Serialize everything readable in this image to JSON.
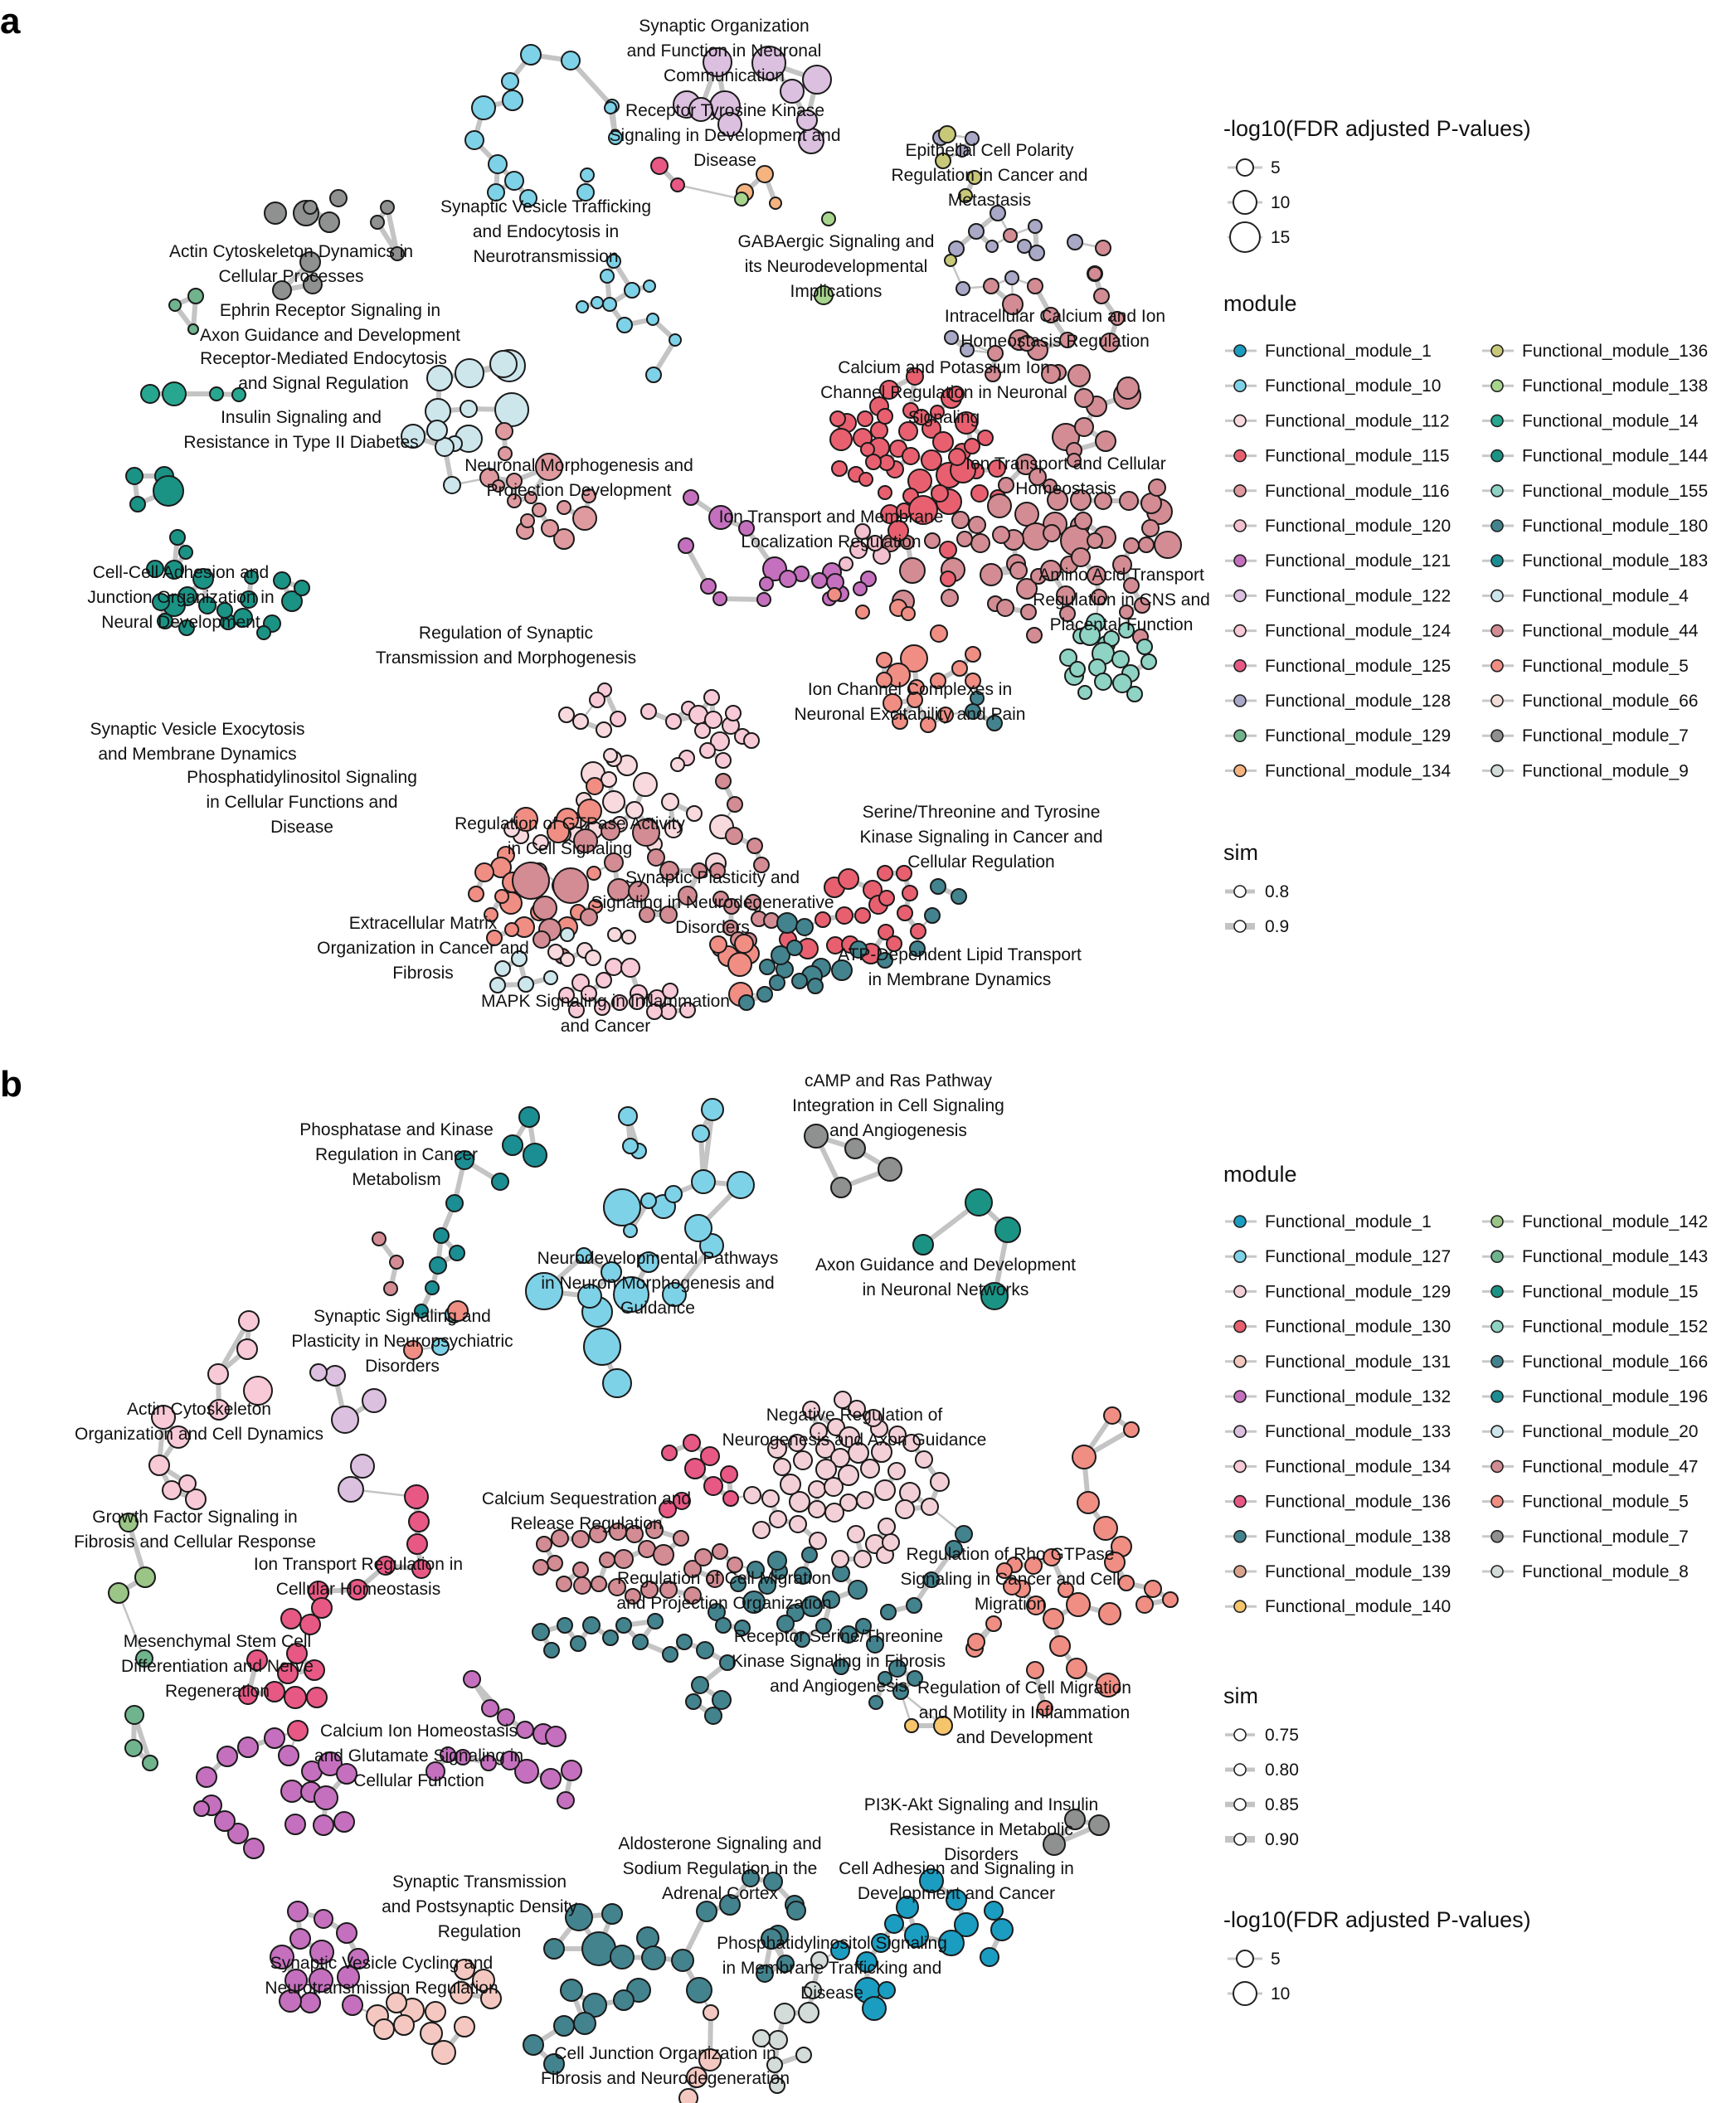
{
  "figure": {
    "panels": [
      {
        "letter": "a",
        "labels": [
          "Synaptic Organization\nand Function in Neuronal\nCommunication",
          "Receptor Tyrosine Kinase\nSignaling in Development and\nDisease",
          "Epithelial Cell Polarity\nRegulation in Cancer and\nMetastasis",
          "Synaptic Vesicle Trafficking\nand Endocytosis in\nNeurotransmission",
          "Actin Cytoskeleton Dynamics in\nCellular Processes",
          "GABAergic Signaling and\nits Neurodevelopmental\nImplications",
          "Ephrin Receptor Signaling in\nAxon Guidance and Development",
          "Intracellular Calcium and Ion\nHomeostasis Regulation",
          "Receptor-Mediated Endocytosis\nand Signal Regulation",
          "Calcium and Potassium Ion\nChannel Regulation in Neuronal\nSignaling",
          "Insulin Signaling and\nResistance in Type II Diabetes",
          "Neuronal Morphogenesis and\nProjection Development",
          "Ion Transport and Cellular\nHomeostasis",
          "Ion Transport and Membrane\nLocalization Regulation",
          "Cell-Cell Adhesion and\nJunction Organization in\nNeural Development",
          "Amino Acid Transport\nRegulation in CNS and\nPlacental Function",
          "Regulation of Synaptic\nTransmission and Morphogenesis",
          "Ion Channel Complexes in\nNeuronal Excitability and Pain",
          "Synaptic Vesicle Exocytosis\nand Membrane Dynamics",
          "Phosphatidylinositol Signaling\nin Cellular Functions and\nDisease",
          "Serine/Threonine and Tyrosine\nKinase Signaling in Cancer and\nCellular Regulation",
          "Regulation of GTPase Activity\nin Cell Signaling",
          "Synaptic Plasticity and\nSignaling in Neurodegenerative\nDisorders",
          "Extracellular Matrix\nOrganization in Cancer and\nFibrosis",
          "ATP-Dependent Lipid Transport\nin Membrane Dynamics",
          "MAPK Signaling in Inflammation\nand Cancer"
        ],
        "size_legend": {
          "title": "-log10(FDR adjusted P-values)",
          "values": [
            "5",
            "10",
            "15"
          ]
        },
        "module_legend": {
          "title": "module",
          "items": [
            {
              "name": "Functional_module_1",
              "color": "#1B9DC1"
            },
            {
              "name": "Functional_module_10",
              "color": "#7ED2E8"
            },
            {
              "name": "Functional_module_112",
              "color": "#F7D9DE"
            },
            {
              "name": "Functional_module_115",
              "color": "#E8606F"
            },
            {
              "name": "Functional_module_116",
              "color": "#DF9A9F"
            },
            {
              "name": "Functional_module_120",
              "color": "#F2C0CF"
            },
            {
              "name": "Functional_module_121",
              "color": "#C570BE"
            },
            {
              "name": "Functional_module_122",
              "color": "#DCC0E0"
            },
            {
              "name": "Functional_module_124",
              "color": "#F8C9D6"
            },
            {
              "name": "Functional_module_125",
              "color": "#E85885"
            },
            {
              "name": "Functional_module_128",
              "color": "#A9A8C6"
            },
            {
              "name": "Functional_module_129",
              "color": "#70B48E"
            },
            {
              "name": "Functional_module_134",
              "color": "#F5B37F"
            },
            {
              "name": "Functional_module_136",
              "color": "#C8C879"
            },
            {
              "name": "Functional_module_138",
              "color": "#A8D58E"
            },
            {
              "name": "Functional_module_14",
              "color": "#27A78F"
            },
            {
              "name": "Functional_module_144",
              "color": "#1A9385"
            },
            {
              "name": "Functional_module_155",
              "color": "#8ED3C4"
            },
            {
              "name": "Functional_module_180",
              "color": "#42838E"
            },
            {
              "name": "Functional_module_183",
              "color": "#1B8E93"
            },
            {
              "name": "Functional_module_4",
              "color": "#CDE6EC"
            },
            {
              "name": "Functional_module_44",
              "color": "#D38C93"
            },
            {
              "name": "Functional_module_5",
              "color": "#F08E84"
            },
            {
              "name": "Functional_module_66",
              "color": "#F3DDD8"
            },
            {
              "name": "Functional_module_7",
              "color": "#8F9090"
            },
            {
              "name": "Functional_module_9",
              "color": "#D3DCD9"
            }
          ]
        },
        "sim_legend": {
          "title": "sim",
          "values": [
            "0.8",
            "0.9"
          ]
        }
      },
      {
        "letter": "b",
        "labels": [
          "cAMP and Ras Pathway\nIntegration in Cell Signaling\nand Angiogenesis",
          "Phosphatase and Kinase\nRegulation in Cancer\nMetabolism",
          "Neurodevelopmental Pathways\nin Neuron Morphogenesis and\nGuidance",
          "Axon Guidance and Development\nin Neuronal Networks",
          "Synaptic Signaling and\nPlasticity in Neuropsychiatric\nDisorders",
          "Actin Cytoskeleton\nOrganization and Cell Dynamics",
          "Negative Regulation of\nNeurogenesis and Axon Guidance",
          "Calcium Sequestration and\nRelease Regulation",
          "Growth Factor Signaling in\nFibrosis and Cellular Response",
          "Ion Transport Regulation in\nCellular Homeostasis",
          "Regulation of Cell Migration\nand Projection Organization",
          "Regulation of Rho GTPase\nSignaling in Cancer and Cell\nMigration",
          "Receptor Serine/Threonine\nKinase Signaling in Fibrosis\nand Angiogenesis",
          "Mesenchymal Stem Cell\nDifferentiation and Nerve\nRegeneration",
          "Regulation of Cell Migration\nand Motility in Inflammation\nand Development",
          "Calcium Ion Homeostasis\nand Glutamate Signaling in\nCellular Function",
          "PI3K-Akt Signaling and Insulin\nResistance in Metabolic\nDisorders",
          "Aldosterone Signaling and\nSodium Regulation in the\nAdrenal Cortex",
          "Cell Adhesion and Signaling in\nDevelopment and Cancer",
          "Synaptic Transmission\nand Postsynaptic Density\nRegulation",
          "Phosphatidylinositol Signaling\nin Membrane Trafficking and\nDisease",
          "Synaptic Vesicle Cycling and\nNeurotransmission Regulation",
          "Cell Junction Organization in\nFibrosis and Neurodegeneration"
        ],
        "module_legend": {
          "title": "module",
          "items": [
            {
              "name": "Functional_module_1",
              "color": "#1B9DC1"
            },
            {
              "name": "Functional_module_127",
              "color": "#7ED2E8"
            },
            {
              "name": "Functional_module_129",
              "color": "#F3D0D8"
            },
            {
              "name": "Functional_module_130",
              "color": "#E8606F"
            },
            {
              "name": "Functional_module_131",
              "color": "#F4C8C0"
            },
            {
              "name": "Functional_module_132",
              "color": "#C570BE"
            },
            {
              "name": "Functional_module_133",
              "color": "#DCC0E0"
            },
            {
              "name": "Functional_module_134",
              "color": "#F8C9D6"
            },
            {
              "name": "Functional_module_136",
              "color": "#E85885"
            },
            {
              "name": "Functional_module_138",
              "color": "#42838E"
            },
            {
              "name": "Functional_module_139",
              "color": "#D9A38E"
            },
            {
              "name": "Functional_module_140",
              "color": "#F6C46A"
            },
            {
              "name": "Functional_module_142",
              "color": "#9AC587"
            },
            {
              "name": "Functional_module_143",
              "color": "#70B48E"
            },
            {
              "name": "Functional_module_15",
              "color": "#1A9385"
            },
            {
              "name": "Functional_module_152",
              "color": "#8ED3C4"
            },
            {
              "name": "Functional_module_166",
              "color": "#42838E"
            },
            {
              "name": "Functional_module_196",
              "color": "#1B8E93"
            },
            {
              "name": "Functional_module_20",
              "color": "#CDE6EC"
            },
            {
              "name": "Functional_module_47",
              "color": "#D38C93"
            },
            {
              "name": "Functional_module_5",
              "color": "#F08E84"
            },
            {
              "name": "Functional_module_7",
              "color": "#8F9090"
            },
            {
              "name": "Functional_module_8",
              "color": "#D3DCD9"
            }
          ]
        },
        "sim_legend": {
          "title": "sim",
          "values": [
            "0.75",
            "0.80",
            "0.85",
            "0.90"
          ]
        },
        "size_legend": {
          "title": "-log10(FDR adjusted P-values)",
          "values": [
            "5",
            "10"
          ]
        }
      }
    ]
  }
}
